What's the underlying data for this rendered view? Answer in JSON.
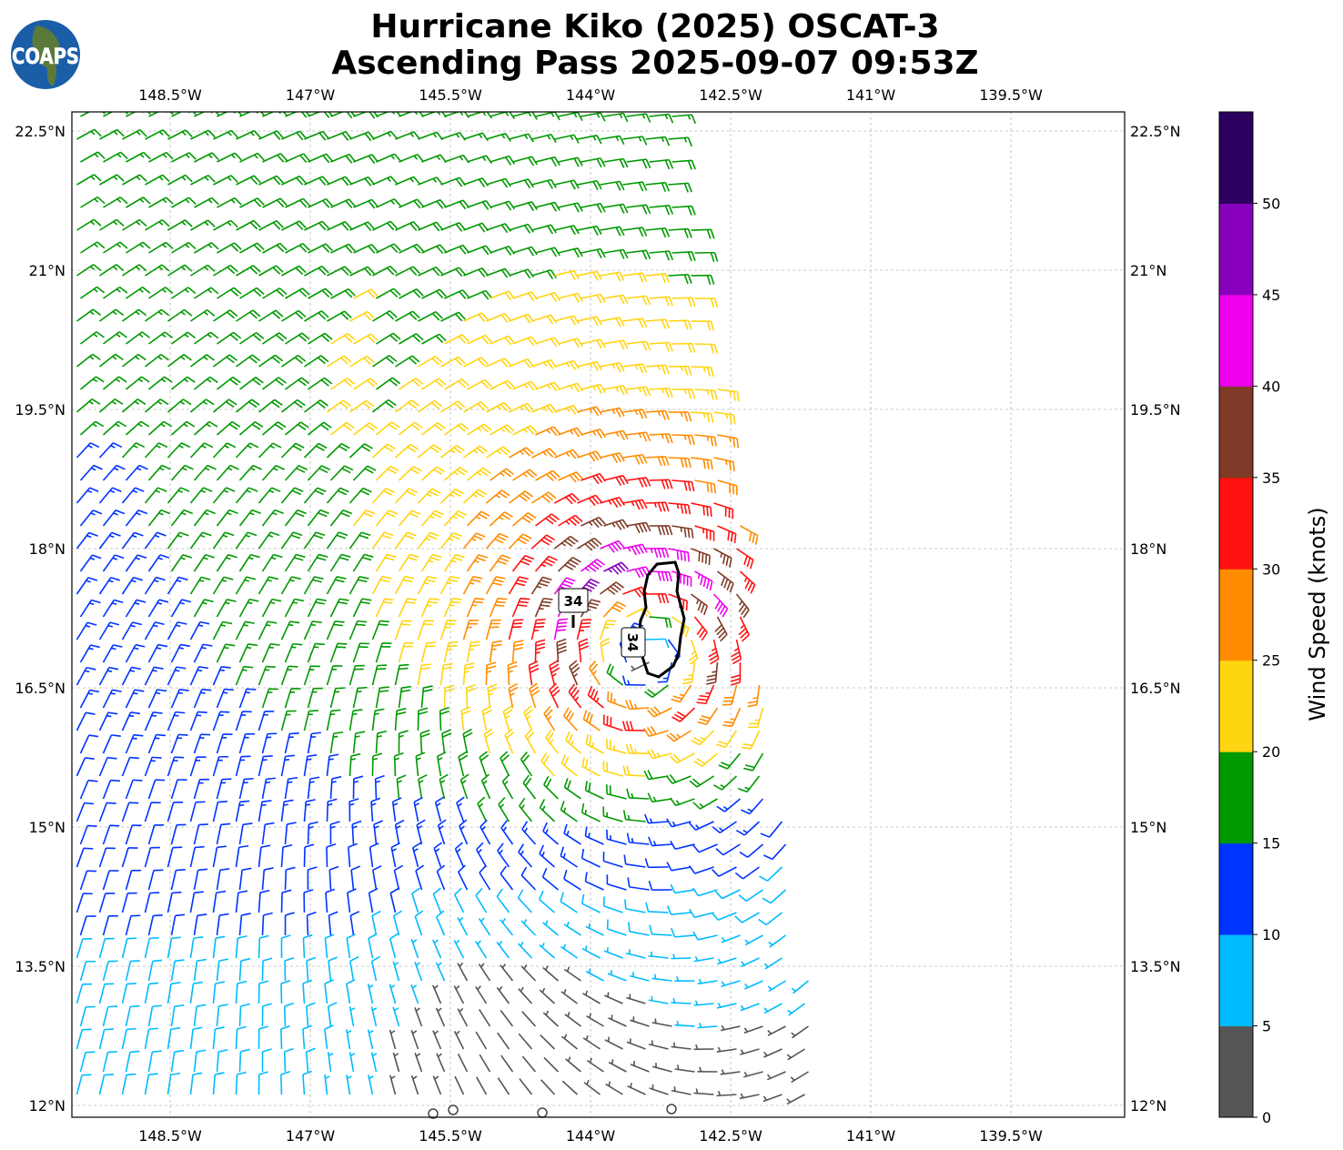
{
  "title": {
    "line1": "Hurricane Kiko (2025) OSCAT-3",
    "line2": "Ascending Pass 2025-09-07 09:53Z"
  },
  "logo": {
    "text": "COAPS"
  },
  "map": {
    "lon_ticks": [
      "148.5°W",
      "147°W",
      "145.5°W",
      "144°W",
      "142.5°W",
      "141°W",
      "139.5°W"
    ],
    "lat_ticks": [
      "22.5°N",
      "21°N",
      "19.5°N",
      "18°N",
      "16.5°N",
      "15°N",
      "13.5°N",
      "12°N"
    ],
    "contour_labels": [
      "34",
      "34"
    ],
    "storm_center": {
      "lon": -143.45,
      "lat": 17.0
    },
    "max_wind_knots": 42
  },
  "colorbar": {
    "label": "Wind Speed (knots)",
    "ticks": [
      "0",
      "5",
      "10",
      "15",
      "20",
      "25",
      "30",
      "35",
      "40",
      "45",
      "50"
    ],
    "bins": [
      {
        "min": 0,
        "max": 5,
        "color": "#555555"
      },
      {
        "min": 5,
        "max": 10,
        "color": "#00bbff"
      },
      {
        "min": 10,
        "max": 15,
        "color": "#0033ff"
      },
      {
        "min": 15,
        "max": 20,
        "color": "#009900"
      },
      {
        "min": 20,
        "max": 25,
        "color": "#ffd411"
      },
      {
        "min": 25,
        "max": 30,
        "color": "#ff8c00"
      },
      {
        "min": 30,
        "max": 35,
        "color": "#ff1111"
      },
      {
        "min": 35,
        "max": 40,
        "color": "#7f3b27"
      },
      {
        "min": 40,
        "max": 45,
        "color": "#ee00ee"
      },
      {
        "min": 45,
        "max": 50,
        "color": "#8800bb"
      },
      {
        "min": 50,
        "max": 55,
        "color": "#2b0060"
      }
    ]
  }
}
